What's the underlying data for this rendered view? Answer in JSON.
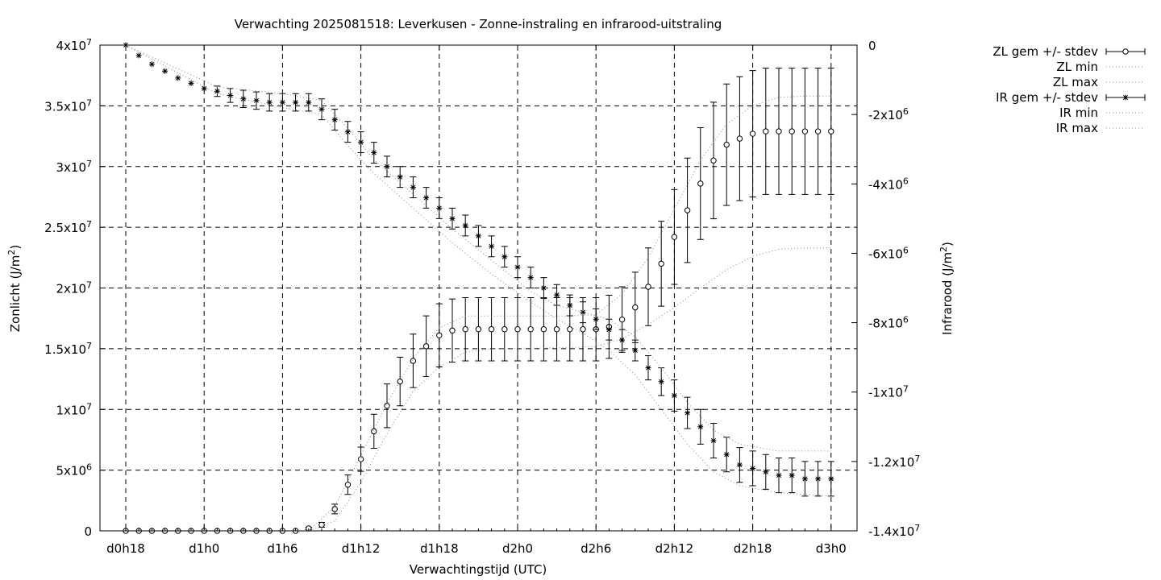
{
  "chart_data": {
    "type": "line",
    "title": "Verwachting 2025081518: Leverkusen - Zonne-instraling en infrarood-uitstraling",
    "xlabel": "Verwachtingstijd (UTC)",
    "ylabel_left_main": "Zonlicht (J/m",
    "ylabel_left_sup": "2",
    "ylabel_left_close": ")",
    "ylabel_right_main": "Infrarood (J/m",
    "ylabel_right_sup": "2",
    "ylabel_right_close": ")",
    "x_ticks": [
      "d0h18",
      "d1h0",
      "d1h6",
      "d1h12",
      "d1h18",
      "d2h0",
      "d2h6",
      "d2h12",
      "d2h18",
      "d3h0"
    ],
    "x_step_hours": 1,
    "x_count": 55,
    "grid": true,
    "legend_position": "outside-right",
    "y_left": {
      "range": [
        0,
        40000000
      ],
      "ticks": [
        {
          "value": 0,
          "base": "0",
          "exp": ""
        },
        {
          "value": 5000000,
          "base": "5x10",
          "exp": "6"
        },
        {
          "value": 10000000,
          "base": "1x10",
          "exp": "7"
        },
        {
          "value": 15000000,
          "base": "1.5x10",
          "exp": "7"
        },
        {
          "value": 20000000,
          "base": "2x10",
          "exp": "7"
        },
        {
          "value": 25000000,
          "base": "2.5x10",
          "exp": "7"
        },
        {
          "value": 30000000,
          "base": "3x10",
          "exp": "7"
        },
        {
          "value": 35000000,
          "base": "3.5x10",
          "exp": "7"
        },
        {
          "value": 40000000,
          "base": "4x10",
          "exp": "7"
        }
      ]
    },
    "y_right": {
      "range": [
        -14000000,
        0
      ],
      "ticks": [
        {
          "value": 0,
          "base": "0",
          "exp": ""
        },
        {
          "value": -2000000,
          "base": "-2x10",
          "exp": "6"
        },
        {
          "value": -4000000,
          "base": "-4x10",
          "exp": "6"
        },
        {
          "value": -6000000,
          "base": "-6x10",
          "exp": "6"
        },
        {
          "value": -8000000,
          "base": "-8x10",
          "exp": "6"
        },
        {
          "value": -10000000,
          "base": "-1x10",
          "exp": "7"
        },
        {
          "value": -12000000,
          "base": "-1.2x10",
          "exp": "7"
        },
        {
          "value": -14000000,
          "base": "-1.4x10",
          "exp": "7"
        }
      ]
    },
    "series": [
      {
        "name": "ZL gem +/- stdev",
        "axis": "left",
        "marker": "circle",
        "mean": [
          0,
          0,
          0,
          0,
          0,
          0,
          0,
          0,
          0,
          0,
          0,
          0,
          0,
          0,
          200000,
          500000,
          1800000,
          3800000,
          5900000,
          8200000,
          10300000,
          12300000,
          14000000,
          15200000,
          16100000,
          16500000,
          16600000,
          16600000,
          16600000,
          16600000,
          16600000,
          16600000,
          16600000,
          16600000,
          16600000,
          16600000,
          16600000,
          16800000,
          17400000,
          18400000,
          20100000,
          22000000,
          24200000,
          26400000,
          28600000,
          30500000,
          31800000,
          32300000,
          32700000,
          32900000,
          32900000,
          32900000,
          32900000,
          32900000,
          32900000
        ],
        "stdev": [
          0,
          0,
          0,
          0,
          0,
          0,
          0,
          0,
          0,
          0,
          0,
          0,
          0,
          0,
          100000,
          200000,
          400000,
          800000,
          1000000,
          1400000,
          1800000,
          2000000,
          2200000,
          2500000,
          2600000,
          2600000,
          2600000,
          2600000,
          2600000,
          2600000,
          2600000,
          2600000,
          2600000,
          2600000,
          2600000,
          2600000,
          2600000,
          2600000,
          2700000,
          2900000,
          3200000,
          3500000,
          3900000,
          4300000,
          4600000,
          4800000,
          5000000,
          5100000,
          5200000,
          5200000,
          5200000,
          5200000,
          5200000,
          5200000,
          5200000
        ]
      },
      {
        "name": "ZL min",
        "axis": "left",
        "line": "dotted",
        "points": [
          [
            0,
            0
          ],
          [
            14,
            0
          ],
          [
            16,
            800000
          ],
          [
            18,
            4000000
          ],
          [
            20,
            8000000
          ],
          [
            22,
            11500000
          ],
          [
            24,
            13500000
          ],
          [
            26,
            14700000
          ],
          [
            28,
            15000000
          ],
          [
            34,
            15100000
          ],
          [
            36,
            15200000
          ],
          [
            38,
            15800000
          ],
          [
            40,
            17000000
          ],
          [
            42,
            18400000
          ],
          [
            44,
            20000000
          ],
          [
            46,
            21500000
          ],
          [
            48,
            22600000
          ],
          [
            50,
            23200000
          ],
          [
            52,
            23300000
          ],
          [
            54,
            23300000
          ]
        ]
      },
      {
        "name": "ZL max",
        "axis": "left",
        "line": "dotted",
        "points": [
          [
            0,
            0
          ],
          [
            14,
            0
          ],
          [
            16,
            2000000
          ],
          [
            18,
            6200000
          ],
          [
            20,
            10500000
          ],
          [
            22,
            14200000
          ],
          [
            24,
            16700000
          ],
          [
            26,
            17700000
          ],
          [
            28,
            17700000
          ],
          [
            34,
            17700000
          ],
          [
            36,
            17800000
          ],
          [
            38,
            19500000
          ],
          [
            40,
            22500000
          ],
          [
            42,
            26500000
          ],
          [
            44,
            30500000
          ],
          [
            46,
            33500000
          ],
          [
            48,
            35000000
          ],
          [
            50,
            35700000
          ],
          [
            52,
            35800000
          ],
          [
            54,
            35800000
          ]
        ]
      },
      {
        "name": "IR gem +/- stdev",
        "axis": "right",
        "marker": "star",
        "mean": [
          0,
          -300000,
          -550000,
          -750000,
          -950000,
          -1100000,
          -1250000,
          -1330000,
          -1450000,
          -1550000,
          -1600000,
          -1650000,
          -1650000,
          -1650000,
          -1650000,
          -1850000,
          -2150000,
          -2500000,
          -2800000,
          -3100000,
          -3500000,
          -3800000,
          -4100000,
          -4400000,
          -4700000,
          -5000000,
          -5200000,
          -5500000,
          -5800000,
          -6100000,
          -6400000,
          -6700000,
          -7000000,
          -7200000,
          -7500000,
          -7700000,
          -7900000,
          -8200000,
          -8500000,
          -8800000,
          -9300000,
          -9700000,
          -10100000,
          -10600000,
          -11000000,
          -11400000,
          -11800000,
          -12100000,
          -12200000,
          -12300000,
          -12400000,
          -12400000,
          -12500000,
          -12500000,
          -12500000
        ],
        "stdev": [
          0,
          0,
          0,
          0,
          0,
          0,
          0,
          150000,
          200000,
          250000,
          250000,
          250000,
          250000,
          250000,
          250000,
          300000,
          300000,
          300000,
          300000,
          300000,
          300000,
          300000,
          300000,
          300000,
          300000,
          300000,
          300000,
          300000,
          300000,
          300000,
          300000,
          300000,
          300000,
          300000,
          300000,
          300000,
          300000,
          300000,
          300000,
          300000,
          350000,
          400000,
          450000,
          450000,
          500000,
          500000,
          500000,
          500000,
          500000,
          500000,
          500000,
          500000,
          500000,
          500000,
          500000
        ]
      },
      {
        "name": "IR min",
        "axis": "right",
        "line": "dotted",
        "points": [
          [
            0,
            0
          ],
          [
            7,
            -1400000
          ],
          [
            12,
            -1800000
          ],
          [
            15,
            -2000000
          ],
          [
            17,
            -2900000
          ],
          [
            19,
            -3700000
          ],
          [
            22,
            -4700000
          ],
          [
            25,
            -5700000
          ],
          [
            28,
            -6600000
          ],
          [
            31,
            -7400000
          ],
          [
            33,
            -7900000
          ],
          [
            35,
            -8300000
          ],
          [
            37,
            -8800000
          ],
          [
            39,
            -9500000
          ],
          [
            41,
            -10500000
          ],
          [
            43,
            -11500000
          ],
          [
            45,
            -12300000
          ],
          [
            47,
            -12700000
          ],
          [
            50,
            -12900000
          ],
          [
            54,
            -13000000
          ]
        ]
      },
      {
        "name": "IR max",
        "axis": "right",
        "line": "dotted",
        "points": [
          [
            0,
            0
          ],
          [
            7,
            -1200000
          ],
          [
            12,
            -1400000
          ],
          [
            15,
            -1600000
          ],
          [
            17,
            -2400000
          ],
          [
            19,
            -3300000
          ],
          [
            22,
            -4300000
          ],
          [
            25,
            -5300000
          ],
          [
            28,
            -6200000
          ],
          [
            31,
            -7100000
          ],
          [
            33,
            -7500000
          ],
          [
            35,
            -7700000
          ],
          [
            37,
            -7900000
          ],
          [
            39,
            -8400000
          ],
          [
            41,
            -9300000
          ],
          [
            43,
            -10300000
          ],
          [
            45,
            -11100000
          ],
          [
            47,
            -11500000
          ],
          [
            50,
            -11700000
          ],
          [
            54,
            -11700000
          ]
        ]
      }
    ]
  }
}
